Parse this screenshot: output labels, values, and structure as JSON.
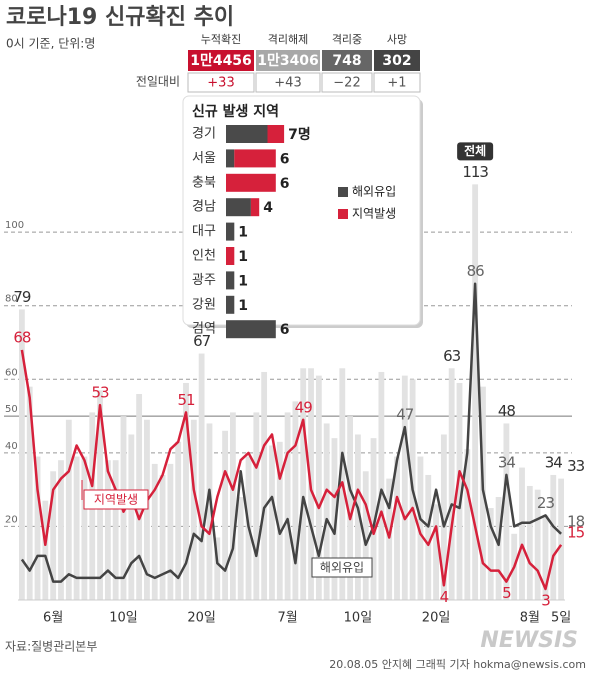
{
  "title": "코로나19 신규확진 추이",
  "subtitle": "0시 기준, 단위:명",
  "summary": {
    "headers": [
      "누적확진",
      "격리해제",
      "격리중",
      "사망"
    ],
    "values": [
      "1만4456",
      "1만3406",
      "748",
      "302"
    ],
    "change_label": "전일대비",
    "changes": [
      "+33",
      "+43",
      "−22",
      "+1"
    ]
  },
  "source": "자료:질병관리본부",
  "logo": "NEWSIS",
  "credit": "20.08.05 안지혜 그래픽 기자 hokma@newsis.com",
  "chart_data": [
    {
      "type": "bar_line",
      "categories": [
        null,
        null,
        null,
        null,
        "6월",
        null,
        null,
        null,
        null,
        null,
        null,
        null,
        null,
        "10일",
        null,
        null,
        null,
        null,
        null,
        null,
        null,
        null,
        null,
        "20일",
        null,
        null,
        null,
        null,
        null,
        null,
        null,
        null,
        null,
        null,
        "7월",
        null,
        null,
        null,
        null,
        null,
        null,
        null,
        null,
        "10일",
        null,
        null,
        null,
        null,
        null,
        null,
        null,
        null,
        null,
        "20일",
        null,
        null,
        null,
        null,
        null,
        null,
        null,
        null,
        null,
        null,
        null,
        "8월",
        null,
        null,
        null,
        "5일"
      ],
      "ylim": [
        0,
        115
      ],
      "yticks": [
        20,
        40,
        50,
        60,
        80,
        100
      ],
      "reference_line": 50,
      "grid": true,
      "series": [
        {
          "name": "전체",
          "type": "bar",
          "color": "#e2e2e2",
          "values": [
            79,
            58,
            39,
            27,
            35,
            38,
            49,
            39,
            39,
            51,
            57,
            38,
            38,
            50,
            45,
            56,
            49,
            37,
            34,
            37,
            43,
            59,
            49,
            67,
            48,
            17,
            46,
            51,
            28,
            39,
            51,
            62,
            42,
            43,
            51,
            54,
            63,
            63,
            61,
            48,
            44,
            63,
            50,
            45,
            35,
            44,
            62,
            33,
            39,
            61,
            60,
            39,
            34,
            26,
            45,
            63,
            59,
            41,
            113,
            58,
            25,
            28,
            48,
            18,
            36,
            31,
            30,
            23,
            34,
            33
          ]
        },
        {
          "name": "해외유입",
          "type": "line",
          "color": "#444444",
          "values": [
            11,
            8,
            12,
            12,
            5,
            5,
            7,
            6,
            6,
            6,
            6,
            8,
            6,
            6,
            10,
            12,
            7,
            6,
            7,
            8,
            6,
            10,
            18,
            16,
            30,
            10,
            8,
            14,
            35,
            20,
            12,
            25,
            28,
            18,
            22,
            10,
            28,
            20,
            12,
            22,
            18,
            40,
            30,
            25,
            15,
            20,
            30,
            25,
            38,
            47,
            30,
            22,
            20,
            30,
            20,
            26,
            25,
            40,
            86,
            30,
            20,
            15,
            34,
            20,
            21,
            21,
            22,
            23,
            20,
            18
          ]
        },
        {
          "name": "지역발생",
          "type": "line",
          "color": "#d6213b",
          "values": [
            68,
            55,
            30,
            15,
            30,
            33,
            35,
            42,
            38,
            31,
            53,
            35,
            30,
            24,
            28,
            22,
            27,
            30,
            34,
            41,
            43,
            51,
            30,
            20,
            18,
            28,
            35,
            30,
            38,
            40,
            36,
            42,
            45,
            33,
            40,
            42,
            49,
            30,
            25,
            30,
            28,
            32,
            22,
            30,
            26,
            18,
            24,
            17,
            28,
            22,
            25,
            18,
            15,
            20,
            4,
            20,
            35,
            30,
            20,
            10,
            8,
            8,
            5,
            9,
            15,
            10,
            8,
            3,
            12,
            15
          ]
        }
      ]
    },
    {
      "type": "stacked_barh",
      "title": "신규 발생 지역",
      "categories": [
        "경기",
        "서울",
        "충북",
        "경남",
        "대구",
        "인천",
        "광주",
        "강원",
        "검역"
      ],
      "series": [
        {
          "name": "해외유입",
          "color": "#4a4a4a",
          "values": [
            5,
            1,
            0,
            3,
            1,
            0,
            1,
            1,
            6
          ]
        },
        {
          "name": "지역발생",
          "color": "#d6213b",
          "values": [
            2,
            5,
            6,
            1,
            0,
            1,
            0,
            0,
            0
          ]
        }
      ],
      "totals": {
        "values": [
          7,
          6,
          6,
          4,
          1,
          1,
          1,
          1,
          6
        ],
        "value_labels": [
          "7명",
          "6",
          "6",
          "4",
          "1",
          "1",
          "1",
          "1",
          "6"
        ]
      }
    }
  ]
}
